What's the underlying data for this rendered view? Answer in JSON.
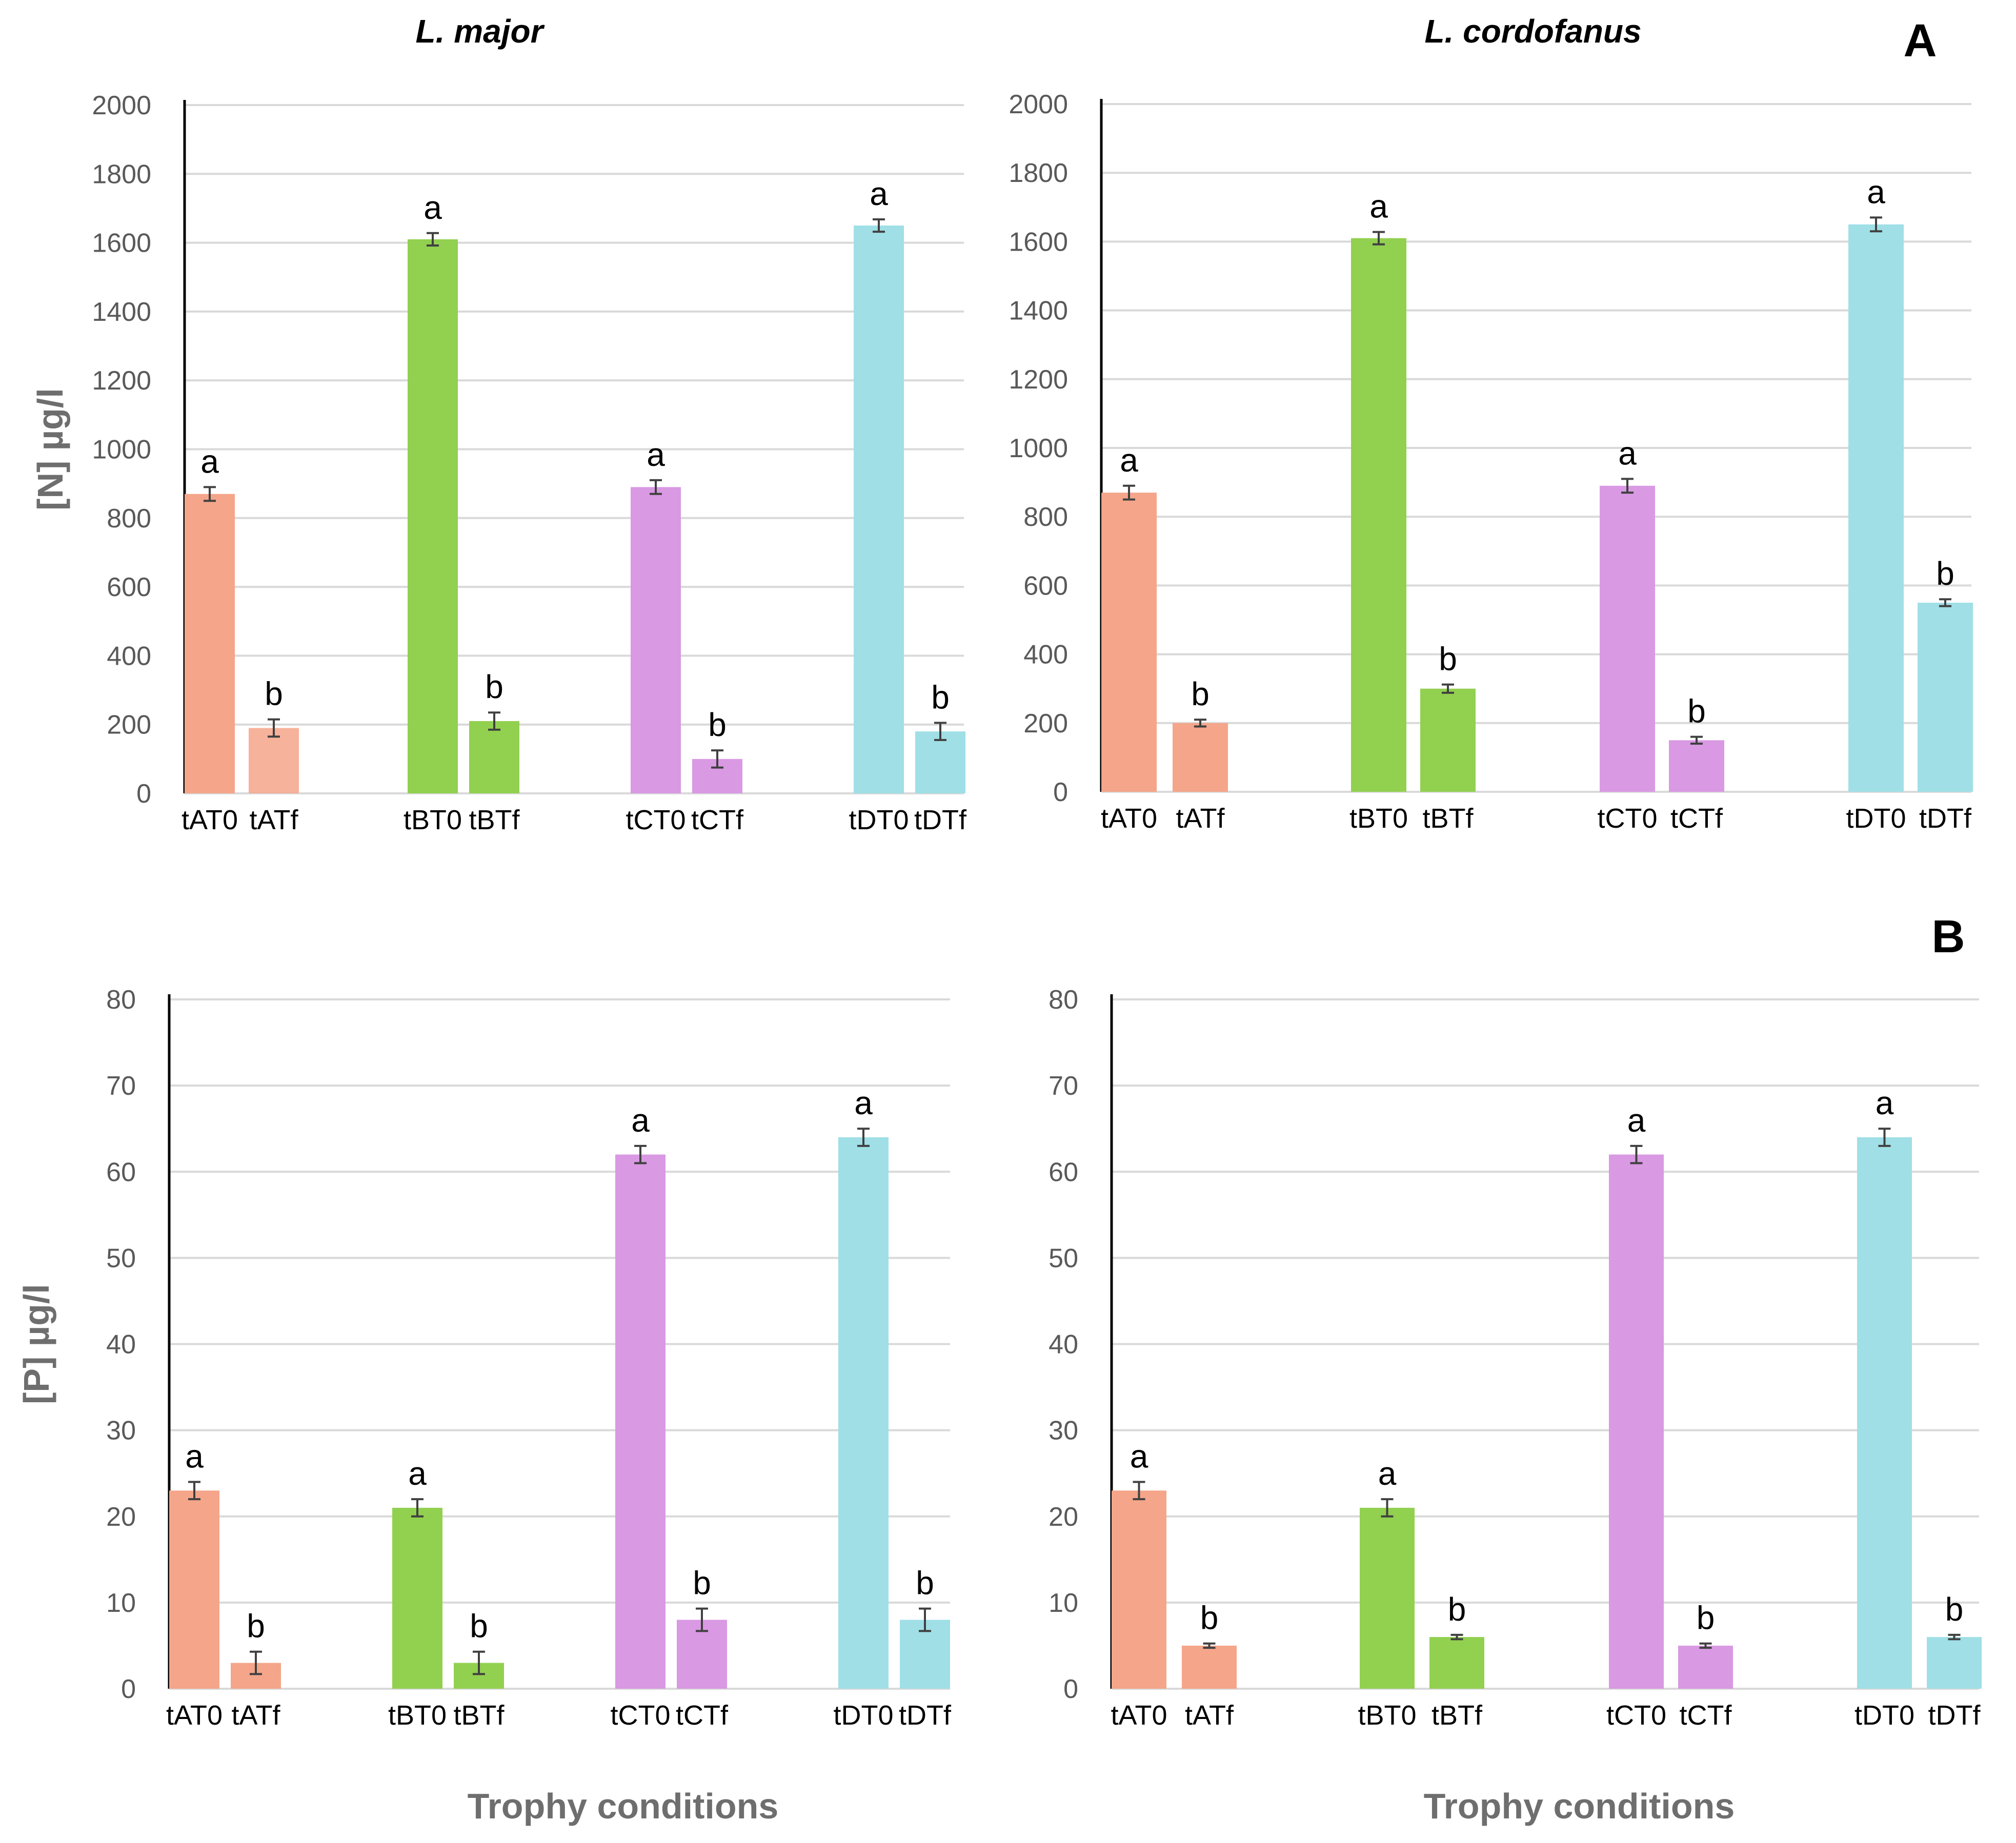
{
  "figure": {
    "panel_labels": {
      "A": "A",
      "B": "B"
    },
    "column_titles": [
      "L. major",
      "L. cordofanus"
    ],
    "x_axis_title": "Trophy conditions",
    "colors": {
      "A": "#f4a58a",
      "B": "#92d050",
      "C": "#d999e3",
      "D": "#a0dfe6"
    }
  },
  "chart_data": [
    {
      "id": "N_major",
      "type": "bar",
      "title": "L. major",
      "ylabel": "[N] µg/l",
      "xlabel": "",
      "ylim": [
        0,
        2000
      ],
      "yticks": [
        0,
        200,
        400,
        600,
        800,
        1000,
        1200,
        1400,
        1600,
        1800,
        2000
      ],
      "categories": [
        "tAT0",
        "tATf",
        "tBT0",
        "tBTf",
        "tCT0",
        "tCTf",
        "tDT0",
        "tDTf"
      ],
      "groups": [
        "A",
        "A",
        "B",
        "B",
        "C",
        "C",
        "D",
        "D"
      ],
      "values": [
        870,
        190,
        1610,
        210,
        890,
        100,
        1650,
        180
      ],
      "errors": [
        20,
        25,
        18,
        25,
        20,
        25,
        18,
        25
      ],
      "labels": [
        "a",
        "b",
        "a",
        "b",
        "a",
        "b",
        "a",
        "b"
      ]
    },
    {
      "id": "N_cordofanus",
      "type": "bar",
      "title": "L. cordofanus",
      "ylabel": "",
      "xlabel": "",
      "ylim": [
        0,
        2000
      ],
      "yticks": [
        0,
        200,
        400,
        600,
        800,
        1000,
        1200,
        1400,
        1600,
        1800,
        2000
      ],
      "categories": [
        "tAT0",
        "tATf",
        "tBT0",
        "tBTf",
        "tCT0",
        "tCTf",
        "tDT0",
        "tDTf"
      ],
      "groups": [
        "A",
        "A",
        "B",
        "B",
        "C",
        "C",
        "D",
        "D"
      ],
      "values": [
        870,
        200,
        1610,
        300,
        890,
        150,
        1650,
        550
      ],
      "errors": [
        20,
        10,
        18,
        12,
        20,
        10,
        20,
        10
      ],
      "labels": [
        "a",
        "b",
        "a",
        "b",
        "a",
        "b",
        "a",
        "b"
      ]
    },
    {
      "id": "P_major",
      "type": "bar",
      "title": "",
      "ylabel": "[P] µg/l",
      "xlabel": "Trophy conditions",
      "ylim": [
        0,
        80
      ],
      "yticks": [
        0,
        10,
        20,
        30,
        40,
        50,
        60,
        70,
        80
      ],
      "categories": [
        "tAT0",
        "tATf",
        "tBT0",
        "tBTf",
        "tCT0",
        "tCTf",
        "tDT0",
        "tDTf"
      ],
      "groups": [
        "A",
        "A",
        "B",
        "B",
        "C",
        "C",
        "D",
        "D"
      ],
      "values": [
        23,
        3,
        21,
        3,
        62,
        8,
        64,
        8
      ],
      "errors": [
        1,
        1.3,
        1,
        1.3,
        1,
        1.3,
        1,
        1.3
      ],
      "labels": [
        "a",
        "b",
        "a",
        "b",
        "a",
        "b",
        "a",
        "b"
      ]
    },
    {
      "id": "P_cordofanus",
      "type": "bar",
      "title": "",
      "ylabel": "",
      "xlabel": "Trophy conditions",
      "ylim": [
        0,
        80
      ],
      "yticks": [
        0,
        10,
        20,
        30,
        40,
        50,
        60,
        70,
        80
      ],
      "categories": [
        "tAT0",
        "tATf",
        "tBT0",
        "tBTf",
        "tCT0",
        "tCTf",
        "tDT0",
        "tDTf"
      ],
      "groups": [
        "A",
        "A",
        "B",
        "B",
        "C",
        "C",
        "D",
        "D"
      ],
      "values": [
        23,
        5,
        21,
        6,
        62,
        5,
        64,
        6
      ],
      "errors": [
        1,
        0.25,
        1,
        0.25,
        1,
        0.25,
        1,
        0.25
      ],
      "labels": [
        "a",
        "b",
        "a",
        "b",
        "a",
        "b",
        "a",
        "b"
      ]
    }
  ]
}
